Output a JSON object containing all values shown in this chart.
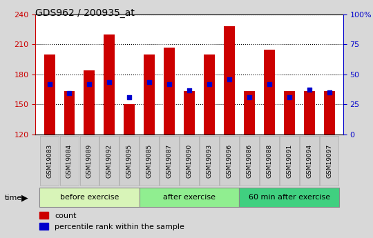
{
  "title": "GDS962 / 200935_at",
  "samples": [
    "GSM19083",
    "GSM19084",
    "GSM19089",
    "GSM19092",
    "GSM19095",
    "GSM19085",
    "GSM19087",
    "GSM19090",
    "GSM19093",
    "GSM19096",
    "GSM19086",
    "GSM19088",
    "GSM19091",
    "GSM19094",
    "GSM19097"
  ],
  "counts": [
    200,
    163,
    184,
    220,
    150,
    200,
    207,
    163,
    200,
    228,
    163,
    205,
    163,
    163,
    163
  ],
  "percentile_ranks": [
    170,
    161,
    170,
    172,
    157,
    172,
    170,
    164,
    170,
    175,
    157,
    170,
    157,
    165,
    162
  ],
  "y_min": 120,
  "y_max": 240,
  "y_ticks": [
    120,
    150,
    180,
    210,
    240
  ],
  "y2_ticks": [
    0,
    25,
    50,
    75,
    100
  ],
  "bar_color": "#cc0000",
  "percentile_color": "#0000cc",
  "left_tick_color": "#cc0000",
  "right_tick_color": "#0000cc",
  "bar_width": 0.55,
  "group_info": [
    {
      "label": "before exercise",
      "start": 0,
      "end": 5,
      "color": "#d8f4b8"
    },
    {
      "label": "after exercise",
      "start": 5,
      "end": 10,
      "color": "#90ee90"
    },
    {
      "label": "60 min after exercise",
      "start": 10,
      "end": 15,
      "color": "#40d080"
    }
  ]
}
